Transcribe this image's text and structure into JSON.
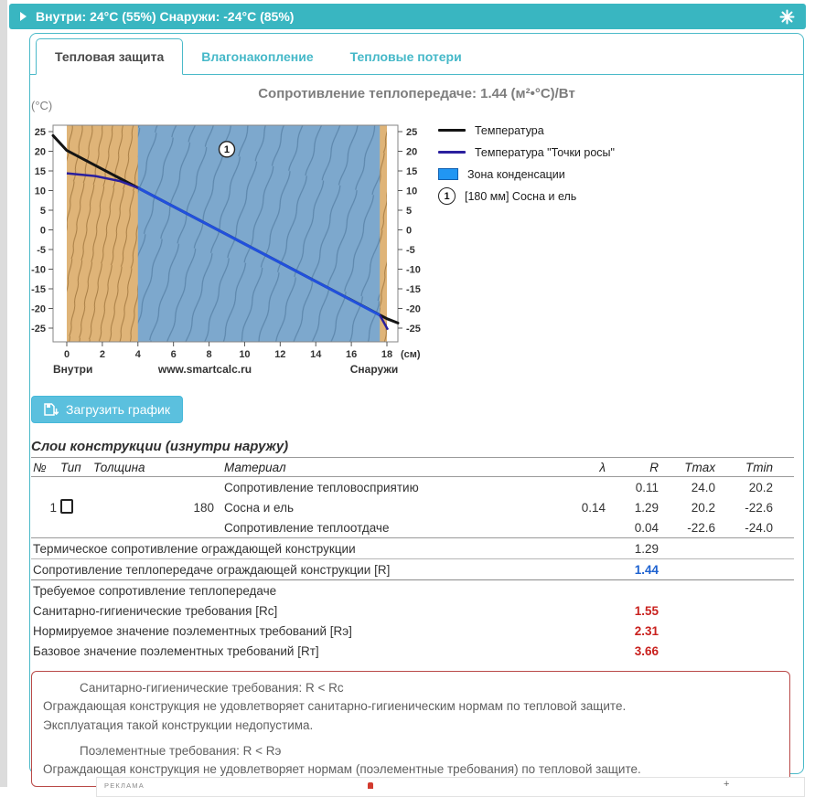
{
  "header": {
    "title": "Внутри: 24°С (55%) Снаружи: -24°С (85%)"
  },
  "tabs": [
    {
      "label": "Тепловая защита",
      "active": true
    },
    {
      "label": "Влагонакопление",
      "active": false
    },
    {
      "label": "Тепловые потери",
      "active": false
    }
  ],
  "chart": {
    "title": "Сопротивление теплопередаче: 1.44 (м²•°С)/Вт"
  },
  "chart_data": {
    "type": "line",
    "title": "Сопротивление теплопередаче: 1.44 (м²•°С)/Вт",
    "xlabel": "(см)",
    "ylabel": "(°C)",
    "xlim": [
      -0.8,
      18.6
    ],
    "ylim": [
      -28,
      27
    ],
    "xticks": [
      0,
      2,
      4,
      6,
      8,
      10,
      12,
      14,
      16,
      18
    ],
    "yticks": [
      25,
      20,
      15,
      10,
      5,
      0,
      -5,
      -10,
      -15,
      -20,
      -25
    ],
    "grid": false,
    "legend_position": "right",
    "wall_cm": [
      0,
      18
    ],
    "condensation_zone_cm": [
      4,
      17.6
    ],
    "series": [
      {
        "name": "Температура",
        "color": "#141414",
        "points": [
          [
            -0.77,
            24
          ],
          [
            0,
            20.2
          ],
          [
            18,
            -22.6
          ],
          [
            18.62,
            -23.7
          ]
        ]
      },
      {
        "name": "Температура \"Точки росы\"",
        "color": "#2a1f9e",
        "merged_color": "#2150dd",
        "points_pre": [
          [
            0,
            14.4
          ],
          [
            1.6,
            13.7
          ],
          [
            3,
            12.4
          ],
          [
            4,
            10.7
          ]
        ],
        "points_merged": [
          [
            4,
            10.7
          ],
          [
            17.6,
            -21.7
          ]
        ],
        "points_post": [
          [
            17.6,
            -21.7
          ],
          [
            18.05,
            -25.4
          ]
        ]
      }
    ],
    "marker": {
      "label": "1",
      "at": [
        9,
        20.5
      ]
    },
    "legend": [
      {
        "swatch": "line",
        "color": "#141414",
        "label": "Температура"
      },
      {
        "swatch": "line",
        "color": "#2a1f9e",
        "label": "Температура \"Точки росы\""
      },
      {
        "swatch": "box",
        "color": "#2196f3",
        "label": "Зона конденсации"
      },
      {
        "swatch": "marker",
        "symbol": "1",
        "label": "[180 мм] Сосна и ель"
      }
    ],
    "labels": {
      "left": "Внутри",
      "center": "www.smartcalc.ru",
      "right": "Снаружи"
    }
  },
  "download_button": {
    "label": "Загрузить график"
  },
  "layers_section": {
    "title": "Слои конструкции (изнутри наружу)",
    "columns": [
      "№",
      "Тип",
      "Толщина",
      "Материал",
      "λ",
      "R",
      "Tmax",
      "Tmin"
    ],
    "rows": [
      {
        "num": "",
        "type_icon": false,
        "thickness": "",
        "material": "Сопротивление тепловосприятию",
        "lambda": "",
        "r": "0.11",
        "tmax": "24.0",
        "tmin": "20.2"
      },
      {
        "num": "1",
        "type_icon": true,
        "thickness": "180",
        "material": "Сосна и ель",
        "lambda": "0.14",
        "r": "1.29",
        "tmax": "20.2",
        "tmin": "-22.6"
      },
      {
        "num": "",
        "type_icon": false,
        "thickness": "",
        "material": "Сопротивление теплоотдаче",
        "lambda": "",
        "r": "0.04",
        "tmax": "-22.6",
        "tmin": "-24.0"
      }
    ],
    "summary_rows": [
      {
        "label": "Термическое сопротивление ограждающей конструкции",
        "value": "1.29",
        "style": "normal"
      },
      {
        "label": "Сопротивление теплопередаче ограждающей конструкции [R]",
        "value": "1.44",
        "style": "blue"
      },
      {
        "label": "Требуемое сопротивление теплопередаче",
        "value": "",
        "style": "header"
      },
      {
        "label": "Санитарно-гигиенические требования [Rc]",
        "value": "1.55",
        "style": "red"
      },
      {
        "label": "Нормируемое значение поэлементных требований [Rэ]",
        "value": "2.31",
        "style": "red"
      },
      {
        "label": "Базовое значение поэлементных требований [Rт]",
        "value": "3.66",
        "style": "red"
      }
    ]
  },
  "warning_box": {
    "lines": [
      {
        "text": "Санитарно-гигиенические требования: R < Rc",
        "indent": true,
        "gap": false
      },
      {
        "text": "Ограждающая конструкция не удовлетворяет санитарно-гигиеническим нормам по тепловой защите.",
        "indent": false,
        "gap": false
      },
      {
        "text": "Эксплуатация такой конструкции недопустима.",
        "indent": false,
        "gap": false
      },
      {
        "text": "Поэлементные требования: R < Rэ",
        "indent": true,
        "gap": true
      },
      {
        "text": "Ограждающая конструкция не удовлетворяет нормам (поэлементные требования) по тепловой защите.",
        "indent": false,
        "gap": false
      }
    ]
  },
  "footer_ad": {
    "label": "РЕКЛАМА"
  }
}
